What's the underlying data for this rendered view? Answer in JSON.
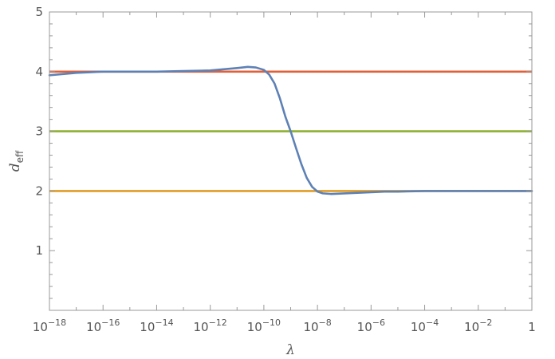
{
  "chart_data": {
    "type": "line",
    "title": "",
    "xlabel": "λ",
    "ylabel_main": "d",
    "ylabel_sub": "eff",
    "xscale": "log",
    "xlim_exp": [
      -18,
      0
    ],
    "ylim": [
      0,
      5
    ],
    "x_tick_exponents": [
      -18,
      -16,
      -14,
      -12,
      -10,
      -8,
      -6,
      -4,
      -2
    ],
    "x_last_tick_label": "1",
    "x_tick_base": "10",
    "y_ticks": [
      1,
      2,
      3,
      4,
      5
    ],
    "grid": false,
    "colors": {
      "curve": "#5e81b5",
      "line_4": "#e0603a",
      "line_3": "#8fb032",
      "line_2": "#e19c24",
      "frame": "#999999"
    },
    "series": [
      {
        "color_key": "curve",
        "points": [
          [
            -18.0,
            3.94
          ],
          [
            -17.5,
            3.96
          ],
          [
            -17.0,
            3.98
          ],
          [
            -16.5,
            3.99
          ],
          [
            -16.0,
            4.0
          ],
          [
            -15.0,
            4.0
          ],
          [
            -14.0,
            4.0
          ],
          [
            -13.0,
            4.01
          ],
          [
            -12.0,
            4.02
          ],
          [
            -11.5,
            4.04
          ],
          [
            -11.0,
            4.06
          ],
          [
            -10.6,
            4.08
          ],
          [
            -10.3,
            4.07
          ],
          [
            -10.0,
            4.03
          ],
          [
            -9.8,
            3.95
          ],
          [
            -9.6,
            3.8
          ],
          [
            -9.4,
            3.55
          ],
          [
            -9.2,
            3.25
          ],
          [
            -9.0,
            3.0
          ],
          [
            -8.8,
            2.72
          ],
          [
            -8.6,
            2.45
          ],
          [
            -8.4,
            2.22
          ],
          [
            -8.2,
            2.07
          ],
          [
            -8.0,
            1.99
          ],
          [
            -7.8,
            1.96
          ],
          [
            -7.5,
            1.95
          ],
          [
            -7.0,
            1.96
          ],
          [
            -6.5,
            1.97
          ],
          [
            -6.0,
            1.98
          ],
          [
            -5.5,
            1.99
          ],
          [
            -5.0,
            1.99
          ],
          [
            -4.0,
            2.0
          ],
          [
            -2.0,
            2.0
          ],
          [
            0.0,
            2.0
          ]
        ]
      },
      {
        "color_key": "line_4",
        "constant": 4
      },
      {
        "color_key": "line_3",
        "constant": 3
      },
      {
        "color_key": "line_2",
        "constant": 2
      }
    ]
  }
}
